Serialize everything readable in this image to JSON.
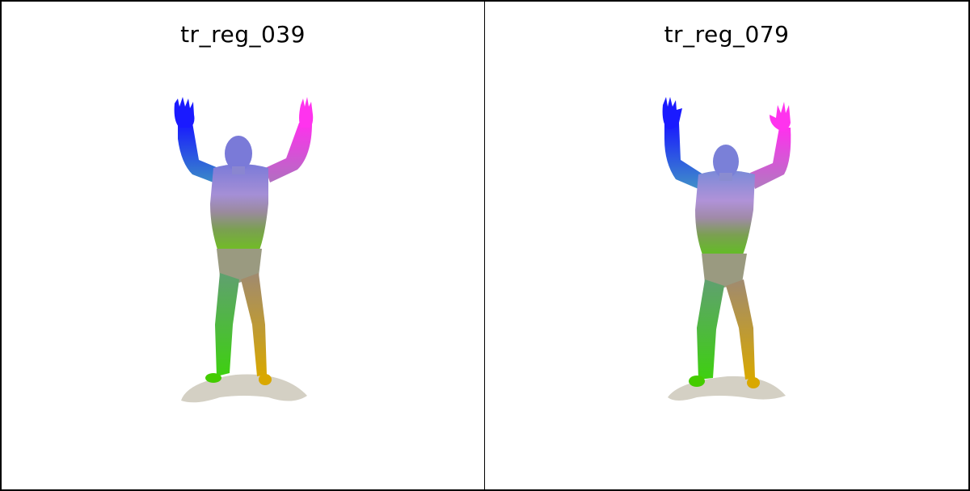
{
  "panels": [
    {
      "title": "tr_reg_039"
    },
    {
      "title": "tr_reg_079"
    }
  ],
  "colors": {
    "background": "#ffffff",
    "border": "#000000",
    "shadow": "#d4d0c4",
    "hand_left": "#1a1aff",
    "hand_right": "#ff33ee",
    "torso": "#9b8fd0",
    "feet_left": "#44cc00",
    "feet_right": "#d9a800"
  }
}
